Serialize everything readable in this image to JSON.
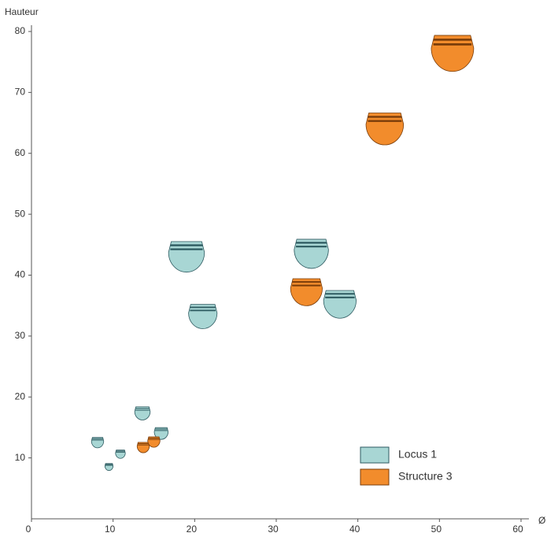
{
  "chart_data": {
    "type": "scatter",
    "xlabel": "Ø",
    "ylabel": "Hauteur",
    "xlim": [
      0,
      60
    ],
    "xticks": [
      0,
      10,
      20,
      30,
      40,
      50,
      60
    ],
    "ylim": [
      0,
      80
    ],
    "yticks": [
      10,
      20,
      30,
      40,
      50,
      60,
      70,
      80
    ],
    "legend": "lower right",
    "series": [
      {
        "name": "Locus 1",
        "color": "#a8d6d4",
        "x": [
          8.1,
          10.9,
          9.5,
          13.6,
          15.9,
          19,
          21,
          34.3,
          37.8
        ],
        "values": [
          12.5,
          10.6,
          8.5,
          17.3,
          14,
          43,
          33.2,
          43.5,
          35.2
        ],
        "sizes": [
          1.5,
          1.2,
          1.0,
          1.9,
          1.7,
          4.4,
          3.5,
          4.2,
          4.0
        ]
      },
      {
        "name": "Structure 3",
        "color": "#f28c2c",
        "x": [
          13.7,
          15,
          33.7,
          43.3,
          51.6
        ],
        "values": [
          11.7,
          12.6,
          37.2,
          64,
          76.4
        ],
        "sizes": [
          1.5,
          1.5,
          3.9,
          4.6,
          5.2
        ]
      }
    ]
  }
}
